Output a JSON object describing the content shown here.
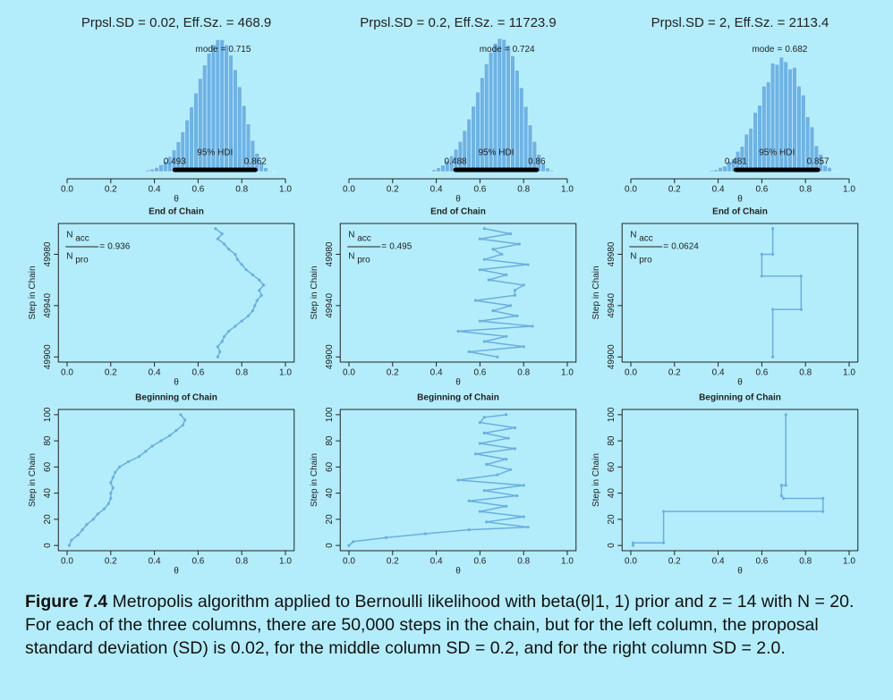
{
  "chart_data": [
    {
      "type": "histogram",
      "title": "Prpsl.SD = 0.02, Eff.Sz. = 468.9",
      "x_label": "θ",
      "color": "#6db3e5",
      "bins": [
        0.36,
        0.38,
        0.4,
        0.42,
        0.44,
        0.46,
        0.48,
        0.5,
        0.52,
        0.54,
        0.56,
        0.58,
        0.6,
        0.62,
        0.64,
        0.66,
        0.68,
        0.7,
        0.72,
        0.74,
        0.76,
        0.78,
        0.8,
        0.82,
        0.84,
        0.86,
        0.88,
        0.9,
        0.92,
        0.94,
        0.96
      ],
      "values": [
        0.05,
        0.08,
        0.13,
        0.21,
        0.31,
        0.46,
        0.66,
        0.91,
        1.21,
        1.57,
        1.97,
        2.39,
        2.83,
        3.24,
        3.6,
        3.86,
        4.01,
        4.01,
        3.85,
        3.54,
        3.1,
        2.58,
        2.01,
        1.45,
        0.95,
        0.56,
        0.28,
        0.12,
        0.03,
        0.01
      ],
      "xlim": [
        0,
        1
      ],
      "ylim": [
        0,
        4.4
      ],
      "xticks": [
        {
          "value": 0,
          "label": "0.0"
        },
        0.2,
        0.4,
        0.6,
        0.8,
        {
          "value": 1,
          "label": "1.0"
        }
      ],
      "mode_label": "mode",
      "mode_sign": "=",
      "mode": 0.715,
      "hdi_label": "95% HDI",
      "hdi": [
        0.493,
        0.862
      ]
    },
    {
      "type": "histogram",
      "title": "Prpsl.SD = 0.2, Eff.Sz. = 11723.9",
      "x_label": "θ",
      "color": "#6db3e5",
      "bins": [
        0.36,
        0.38,
        0.4,
        0.42,
        0.44,
        0.46,
        0.48,
        0.5,
        0.52,
        0.54,
        0.56,
        0.58,
        0.6,
        0.62,
        0.64,
        0.66,
        0.68,
        0.7,
        0.72,
        0.74,
        0.76,
        0.78,
        0.8,
        0.82,
        0.84,
        0.86,
        0.88,
        0.9,
        0.92,
        0.94,
        0.96
      ],
      "values": [
        0.02,
        0.06,
        0.12,
        0.2,
        0.33,
        0.48,
        0.68,
        0.92,
        1.25,
        1.6,
        1.99,
        2.42,
        2.86,
        3.28,
        3.63,
        3.9,
        4.05,
        4.02,
        3.84,
        3.52,
        3.08,
        2.55,
        1.98,
        1.42,
        0.92,
        0.53,
        0.26,
        0.11,
        0.04,
        0.01
      ],
      "xlim": [
        0,
        1
      ],
      "ylim": [
        0,
        4.4
      ],
      "xticks": [
        {
          "value": 0,
          "label": "0.0"
        },
        0.2,
        0.4,
        0.6,
        0.8,
        {
          "value": 1,
          "label": "1.0"
        }
      ],
      "mode_label": "mode",
      "mode_sign": "=",
      "mode": 0.724,
      "hdi_label": "95% HDI",
      "hdi": [
        0.488,
        0.86
      ]
    },
    {
      "type": "histogram",
      "title": "Prpsl.SD = 2, Eff.Sz. = 2113.4",
      "x_label": "θ",
      "color": "#6db3e5",
      "bins": [
        0.36,
        0.38,
        0.4,
        0.42,
        0.44,
        0.46,
        0.48,
        0.5,
        0.52,
        0.54,
        0.56,
        0.58,
        0.6,
        0.62,
        0.64,
        0.66,
        0.68,
        0.7,
        0.72,
        0.74,
        0.76,
        0.78,
        0.8,
        0.82,
        0.84,
        0.86,
        0.88,
        0.9,
        0.92,
        0.94,
        0.96
      ],
      "values": [
        0.04,
        0.06,
        0.13,
        0.17,
        0.31,
        0.39,
        0.62,
        0.77,
        1.14,
        1.32,
        1.8,
        2.02,
        2.6,
        2.73,
        3.3,
        3.26,
        3.48,
        3.34,
        3.12,
        3.17,
        2.6,
        2.33,
        1.67,
        1.36,
        0.79,
        0.53,
        0.19,
        0.13,
        0.02,
        0.01
      ],
      "xlim": [
        0,
        1
      ],
      "ylim": [
        0,
        4.4
      ],
      "xticks": [
        {
          "value": 0,
          "label": "0.0"
        },
        0.2,
        0.4,
        0.6,
        0.8,
        {
          "value": 1,
          "label": "1.0"
        }
      ],
      "mode_label": "mode",
      "mode_sign": "=",
      "mode": 0.682,
      "hdi_label": "95% HDI",
      "hdi": [
        0.481,
        0.857
      ]
    },
    {
      "type": "line",
      "title": "End of Chain",
      "x_label": "θ",
      "y_label": "Step in Chain",
      "color": "#6aaee2",
      "x": [
        0.69,
        0.7,
        0.69,
        0.71,
        0.72,
        0.74,
        0.77,
        0.8,
        0.83,
        0.85,
        0.86,
        0.87,
        0.89,
        0.88,
        0.9,
        0.88,
        0.85,
        0.82,
        0.8,
        0.78,
        0.77,
        0.74,
        0.72,
        0.69,
        0.71,
        0.68
      ],
      "y": [
        49900,
        49904,
        49908,
        49912,
        49916,
        49920,
        49924,
        49928,
        49932,
        49936,
        49940,
        49944,
        49948,
        49952,
        49956,
        49960,
        49964,
        49968,
        49972,
        49976,
        49980,
        49984,
        49988,
        49992,
        49996,
        50000
      ],
      "xlim": [
        -0.04,
        1.04
      ],
      "ylim": [
        49896,
        50004
      ],
      "xticks": [
        {
          "value": 0,
          "label": "0.0"
        },
        0.2,
        0.4,
        0.6,
        0.8,
        {
          "value": 1,
          "label": "1.0"
        }
      ],
      "yticks": [
        49900,
        49940,
        49980
      ],
      "ratio_symbol": "N",
      "ratio_top": "acc",
      "ratio_bottom": "pro",
      "ratio_sign": "=",
      "ratio": 0.936
    },
    {
      "type": "line",
      "title": "End of Chain",
      "x_label": "θ",
      "y_label": "Step in Chain",
      "color": "#6aaee2",
      "x": [
        0.68,
        0.55,
        0.8,
        0.62,
        0.72,
        0.5,
        0.84,
        0.6,
        0.77,
        0.66,
        0.74,
        0.58,
        0.76,
        0.76,
        0.8,
        0.64,
        0.72,
        0.6,
        0.82,
        0.62,
        0.7,
        0.66,
        0.78,
        0.6,
        0.74,
        0.62
      ],
      "y": [
        49900,
        49904,
        49908,
        49912,
        49916,
        49920,
        49924,
        49928,
        49932,
        49936,
        49940,
        49944,
        49948,
        49952,
        49956,
        49960,
        49964,
        49968,
        49972,
        49976,
        49980,
        49984,
        49988,
        49992,
        49996,
        50000
      ],
      "xlim": [
        -0.04,
        1.04
      ],
      "ylim": [
        49896,
        50004
      ],
      "xticks": [
        {
          "value": 0,
          "label": "0.0"
        },
        0.2,
        0.4,
        0.6,
        0.8,
        {
          "value": 1,
          "label": "1.0"
        }
      ],
      "yticks": [
        49900,
        49940,
        49980
      ],
      "ratio_symbol": "N",
      "ratio_top": "acc",
      "ratio_bottom": "pro",
      "ratio_sign": "=",
      "ratio": 0.495
    },
    {
      "type": "line",
      "title": "End of Chain",
      "x_label": "θ",
      "y_label": "Step in Chain",
      "color": "#6aaee2",
      "x": [
        0.65,
        0.65,
        0.78,
        0.78,
        0.6,
        0.6,
        0.65,
        0.65
      ],
      "y": [
        49900,
        49937,
        49937,
        49963,
        49963,
        49980,
        49980,
        50000
      ],
      "xlim": [
        -0.04,
        1.04
      ],
      "ylim": [
        49896,
        50004
      ],
      "xticks": [
        {
          "value": 0,
          "label": "0.0"
        },
        0.2,
        0.4,
        0.6,
        0.8,
        {
          "value": 1,
          "label": "1.0"
        }
      ],
      "yticks": [
        49900,
        49940,
        49980
      ],
      "ratio_symbol": "N",
      "ratio_top": "acc",
      "ratio_bottom": "pro",
      "ratio_sign": "=",
      "ratio": 0.0624
    },
    {
      "type": "line",
      "title": "Beginning of Chain",
      "x_label": "θ",
      "y_label": "Step in Chain",
      "color": "#6aaee2",
      "x": [
        0.01,
        0.02,
        0.05,
        0.07,
        0.09,
        0.12,
        0.14,
        0.17,
        0.19,
        0.2,
        0.2,
        0.21,
        0.2,
        0.21,
        0.22,
        0.24,
        0.28,
        0.33,
        0.36,
        0.39,
        0.43,
        0.47,
        0.5,
        0.53,
        0.54,
        0.52
      ],
      "y": [
        0,
        4,
        8,
        12,
        16,
        20,
        24,
        28,
        32,
        36,
        40,
        44,
        48,
        52,
        56,
        60,
        64,
        68,
        72,
        76,
        80,
        84,
        88,
        92,
        96,
        100
      ],
      "xlim": [
        -0.04,
        1.04
      ],
      "ylim": [
        -4,
        104
      ],
      "xticks": [
        {
          "value": 0,
          "label": "0.0"
        },
        0.2,
        0.4,
        0.6,
        0.8,
        {
          "value": 1,
          "label": "1.0"
        }
      ],
      "yticks": [
        0,
        20,
        40,
        60,
        80,
        100
      ]
    },
    {
      "type": "line",
      "title": "Beginning of Chain",
      "x_label": "θ",
      "y_label": "Step in Chain",
      "color": "#6aaee2",
      "x": [
        0.0,
        0.02,
        0.17,
        0.35,
        0.55,
        0.82,
        0.63,
        0.8,
        0.6,
        0.72,
        0.55,
        0.77,
        0.62,
        0.8,
        0.5,
        0.68,
        0.74,
        0.63,
        0.72,
        0.58,
        0.76,
        0.6,
        0.73,
        0.62,
        0.76,
        0.6,
        0.62,
        0.72
      ],
      "y": [
        0,
        3,
        6,
        9,
        12,
        14,
        18,
        22,
        26,
        30,
        34,
        38,
        42,
        46,
        50,
        54,
        58,
        62,
        66,
        70,
        74,
        78,
        82,
        86,
        90,
        94,
        98,
        100
      ],
      "xlim": [
        -0.04,
        1.04
      ],
      "ylim": [
        -4,
        104
      ],
      "xticks": [
        {
          "value": 0,
          "label": "0.0"
        },
        0.2,
        0.4,
        0.6,
        0.8,
        {
          "value": 1,
          "label": "1.0"
        }
      ],
      "yticks": [
        0,
        20,
        40,
        60,
        80,
        100
      ]
    },
    {
      "type": "line",
      "title": "Beginning of Chain",
      "x_label": "θ",
      "y_label": "Step in Chain",
      "color": "#6aaee2",
      "x": [
        0.01,
        0.01,
        0.15,
        0.15,
        0.88,
        0.88,
        0.7,
        0.69,
        0.69,
        0.71,
        0.71
      ],
      "y": [
        0,
        2,
        2,
        26,
        26,
        36,
        36,
        38,
        46,
        46,
        100
      ],
      "xlim": [
        -0.04,
        1.04
      ],
      "ylim": [
        -4,
        104
      ],
      "xticks": [
        {
          "value": 0,
          "label": "0.0"
        },
        0.2,
        0.4,
        0.6,
        0.8,
        {
          "value": 1,
          "label": "1.0"
        }
      ],
      "yticks": [
        0,
        20,
        40,
        60,
        80,
        100
      ]
    }
  ],
  "caption": {
    "label": "Figure 7.4",
    "text": "Metropolis algorithm applied to Bernoulli likelihood with beta(θ|1, 1) prior and z = 14 with N = 20. For each of the three columns, there are 50,000 steps in the chain, but for the left column, the proposal standard deviation (SD) is 0.02, for the middle column SD = 0.2, and for the right column SD = 2.0."
  }
}
